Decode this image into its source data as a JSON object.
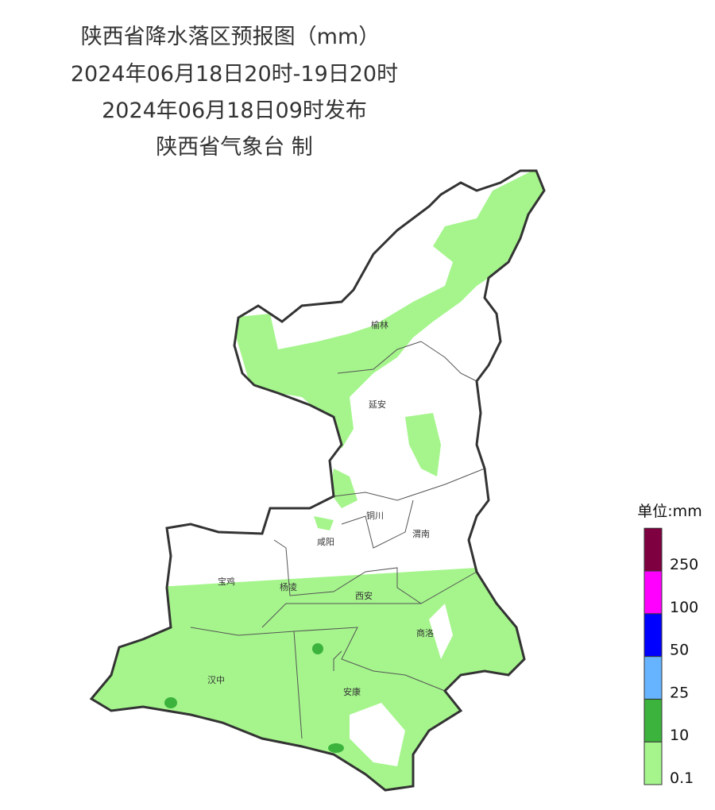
{
  "header": {
    "title": "陕西省降水落区预报图（mm）",
    "period": "2024年06月18日20时-19日20时",
    "issued": "2024年06月18日09时发布",
    "issuer": "陕西省气象台 制"
  },
  "cities": [
    "榆林",
    "延安",
    "铜川",
    "咸阳",
    "渭南",
    "宝鸡",
    "杨凌",
    "西安",
    "商洛",
    "汉中",
    "安康"
  ],
  "legend": {
    "title": "单位:mm",
    "levels": [
      0.1,
      10,
      25,
      50,
      100,
      250
    ],
    "colors": [
      "#a5f58c",
      "#3cb33c",
      "#66b3ff",
      "#0000ff",
      "#ff00ff",
      "#7f0040"
    ]
  }
}
